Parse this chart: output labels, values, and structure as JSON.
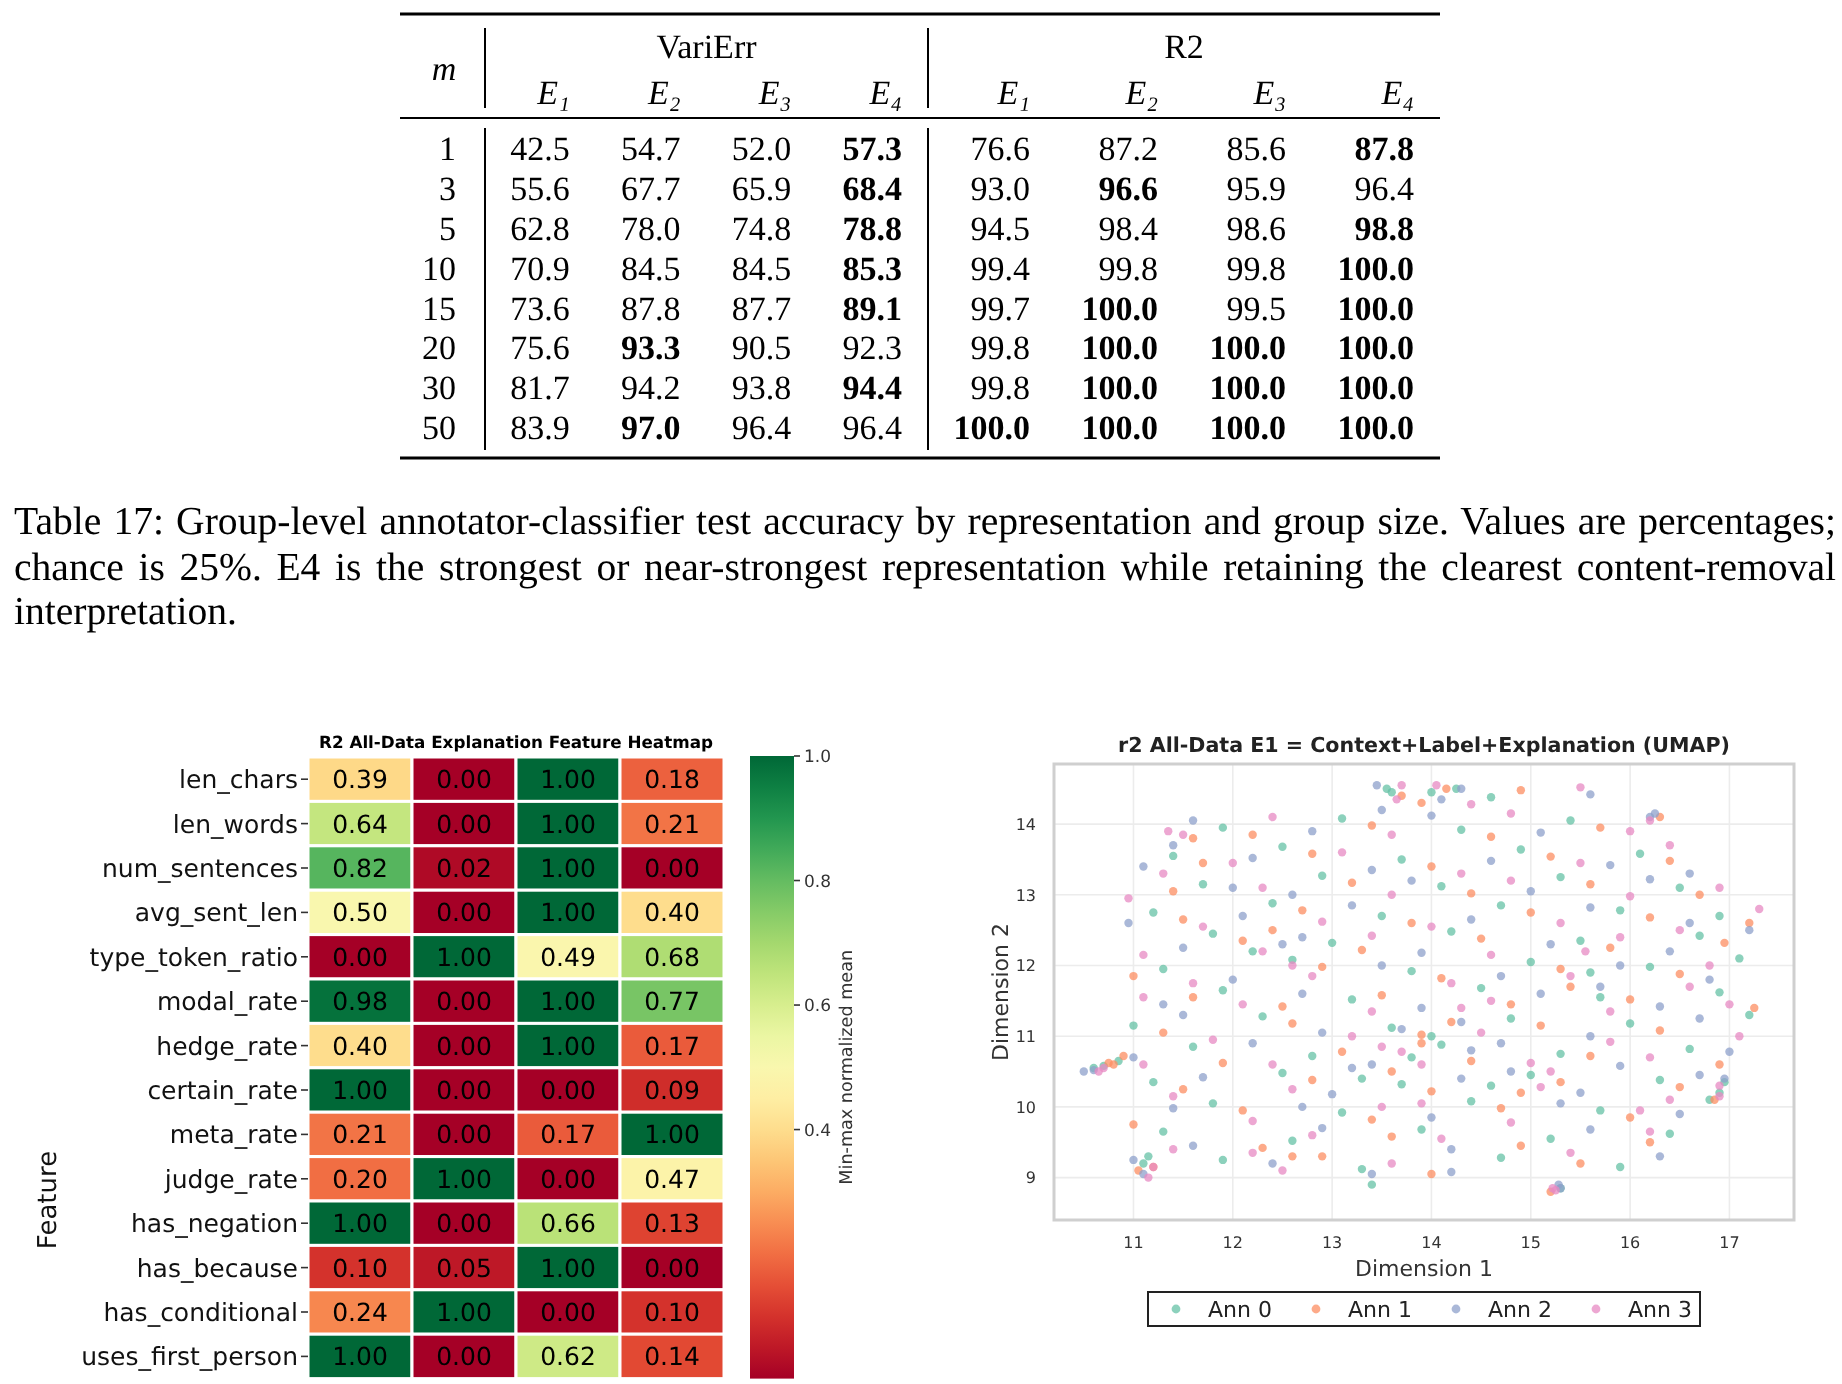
{
  "chart_data": [
    {
      "type": "other",
      "title": "VariErr",
      "ylabel": "m",
      "categories": [
        "E₁",
        "E₂",
        "E₃",
        "E₄"
      ],
      "series": [
        {
          "name": "1",
          "values": [
            42.5,
            54.7,
            52.0,
            57.3
          ],
          "value_labels": [
            "42.5",
            "54.7",
            "52.0",
            "57.3"
          ]
        },
        {
          "name": "3",
          "values": [
            55.6,
            67.7,
            65.9,
            68.4
          ],
          "value_labels": [
            "55.6",
            "67.7",
            "65.9",
            "68.4"
          ]
        },
        {
          "name": "5",
          "values": [
            62.8,
            78.0,
            74.8,
            78.8
          ],
          "value_labels": [
            "62.8",
            "78.0",
            "74.8",
            "78.8"
          ]
        },
        {
          "name": "10",
          "values": [
            70.9,
            84.5,
            84.5,
            85.3
          ],
          "value_labels": [
            "70.9",
            "84.5",
            "84.5",
            "85.3"
          ]
        },
        {
          "name": "15",
          "values": [
            73.6,
            87.8,
            87.7,
            89.1
          ],
          "value_labels": [
            "73.6",
            "87.8",
            "87.7",
            "89.1"
          ]
        },
        {
          "name": "20",
          "values": [
            75.6,
            93.3,
            90.5,
            92.3
          ],
          "value_labels": [
            "75.6",
            "93.3",
            "90.5",
            "92.3"
          ]
        },
        {
          "name": "30",
          "values": [
            81.7,
            94.2,
            93.8,
            94.4
          ],
          "value_labels": [
            "81.7",
            "94.2",
            "93.8",
            "94.4"
          ]
        },
        {
          "name": "50",
          "values": [
            83.9,
            97.0,
            96.4,
            96.4
          ],
          "value_labels": [
            "83.9",
            "97.0",
            "96.4",
            "96.4"
          ]
        }
      ],
      "annotations": [
        "Table 17: Group-level annotator-classifier test accuracy by representation and group size. Values are percentages; chance is 25%. E4 is the strongest or near-strongest representation while retaining the clearest content-removal interpretation."
      ]
    },
    {
      "type": "other",
      "title": "R2",
      "categories": [
        "E₁",
        "E₂",
        "E₃",
        "E₄"
      ],
      "series": [
        {
          "values": [
            76.6,
            87.2,
            85.6,
            87.8
          ],
          "value_labels": [
            "76.6",
            "87.2",
            "85.6",
            "87.8"
          ]
        },
        {
          "values": [
            93.0,
            96.6,
            95.9,
            96.4
          ],
          "value_labels": [
            "93.0",
            "96.6",
            "95.9",
            "96.4"
          ]
        },
        {
          "values": [
            94.5,
            98.4,
            98.6,
            98.8
          ],
          "value_labels": [
            "94.5",
            "98.4",
            "98.6",
            "98.8"
          ]
        },
        {
          "values": [
            99.4,
            99.8,
            99.8,
            100.0
          ],
          "value_labels": [
            "99.4",
            "99.8",
            "99.8",
            "100.0"
          ]
        },
        {
          "values": [
            99.7,
            100.0,
            99.5,
            100.0
          ],
          "value_labels": [
            "99.7",
            "100.0",
            "99.5",
            "100.0"
          ]
        },
        {
          "values": [
            99.8,
            100.0,
            100.0,
            100.0
          ],
          "value_labels": [
            "99.8",
            "100.0",
            "100.0",
            "100.0"
          ]
        },
        {
          "values": [
            99.8,
            100.0,
            100.0,
            100.0
          ],
          "value_labels": [
            "99.8",
            "100.0",
            "100.0",
            "100.0"
          ]
        },
        {
          "values": [
            100.0,
            100.0,
            100.0,
            100.0
          ],
          "value_labels": [
            "100.0",
            "100.0",
            "100.0",
            "100.0"
          ]
        }
      ]
    },
    {
      "type": "heatmap",
      "title": "R2 All-Data Explanation Feature Heatmap",
      "ylabel": "Feature",
      "clabel": "Min-max normalized mean",
      "tick_labels": "y",
      "categories": [
        null,
        null,
        null,
        null
      ],
      "y_categories": [
        "len_chars",
        "len_words",
        "num_sentences",
        "avg_sent_len",
        "type_token_ratio",
        "modal_rate",
        "hedge_rate",
        "certain_rate",
        "meta_rate",
        "judge_rate",
        "has_negation",
        "has_because",
        "has_conditional",
        "uses_first_person"
      ],
      "cells": [
        [
          0.39,
          0,
          1,
          0.18
        ],
        [
          0.64,
          0,
          1,
          0.21
        ],
        [
          0.82,
          0.02,
          1,
          0
        ],
        [
          0.5,
          0,
          1,
          0.4
        ],
        [
          0,
          1,
          0.49,
          0.68
        ],
        [
          0.98,
          0,
          1,
          0.77
        ],
        [
          0.4,
          0,
          1,
          0.17
        ],
        [
          1,
          0,
          0,
          0.09
        ],
        [
          0.21,
          0,
          0.17,
          1
        ],
        [
          0.2,
          1,
          0,
          0.47
        ],
        [
          1,
          0,
          0.66,
          0.13
        ],
        [
          0.1,
          0.05,
          1,
          0
        ],
        [
          0.24,
          1,
          0,
          0.1
        ],
        [
          1,
          0,
          0.62,
          0.14
        ]
      ],
      "cell_labels": [
        [
          "0.39",
          "0.00",
          "1.00",
          "0.18"
        ],
        [
          "0.64",
          "0.00",
          "1.00",
          "0.21"
        ],
        [
          "0.82",
          "0.02",
          "1.00",
          "0.00"
        ],
        [
          "0.50",
          "0.00",
          "1.00",
          "0.40"
        ],
        [
          "0.00",
          "1.00",
          "0.49",
          "0.68"
        ],
        [
          "0.98",
          "0.00",
          "1.00",
          "0.77"
        ],
        [
          "0.40",
          "0.00",
          "1.00",
          "0.17"
        ],
        [
          "1.00",
          "0.00",
          "0.00",
          "0.09"
        ],
        [
          "0.21",
          "0.00",
          "0.17",
          "1.00"
        ],
        [
          "0.20",
          "1.00",
          "0.00",
          "0.47"
        ],
        [
          "1.00",
          "0.00",
          "0.66",
          "0.13"
        ],
        [
          "0.10",
          "0.05",
          "1.00",
          "0.00"
        ],
        [
          "0.24",
          "1.00",
          "0.00",
          "0.10"
        ],
        [
          "1.00",
          "0.00",
          "0.62",
          "0.14"
        ]
      ],
      "clim": [
        0,
        1
      ],
      "cticks": [
        0.4,
        0.6,
        0.8,
        {
          "value": 1,
          "label": "1.0"
        }
      ]
    },
    {
      "type": "scatter",
      "title": "r2 All-Data E1 = Context+Label+Explanation (UMAP)",
      "xlabel": "Dimension 1",
      "ylabel": "Dimension 2",
      "xlim": [
        10.2,
        17.65
      ],
      "ylim": [
        8.4,
        14.85
      ],
      "xticks": [
        11,
        12,
        13,
        14,
        15,
        16,
        17
      ],
      "yticks": [
        9,
        10,
        11,
        12,
        13,
        14
      ],
      "grid": true,
      "legend": "bottom",
      "marker": "circle",
      "series": [
        {
          "name": "Ann 0",
          "color": "#66c2a5",
          "x": [
            13.6,
            14.6,
            11.9,
            13.1,
            14.3,
            15.4,
            11.4,
            12.5,
            13.7,
            14.9,
            16.1,
            11.7,
            12.9,
            14.1,
            15.3,
            16.5,
            11.2,
            12.4,
            13.5,
            14.7,
            15.9,
            16.9,
            11.8,
            13.0,
            14.2,
            15.5,
            16.7,
            11.3,
            12.6,
            13.8,
            15.0,
            16.2,
            17.1,
            11.9,
            13.2,
            14.5,
            15.7,
            16.9,
            11.0,
            12.3,
            13.6,
            14.8,
            16.0,
            17.2,
            11.6,
            12.8,
            14.1,
            15.3,
            16.6,
            11.2,
            12.5,
            13.7,
            15.0,
            16.3,
            11.8,
            13.1,
            14.4,
            15.7,
            16.8,
            11.3,
            12.6,
            13.9,
            15.2,
            16.4,
            11.9,
            13.3,
            14.7,
            15.9,
            13.4,
            10.6,
            10.7,
            10.85,
            11.1,
            11.15,
            13.55,
            14.0,
            14.25,
            15.3,
            16.9,
            16.95,
            13.8,
            14.0,
            13.3,
            14.6,
            12.2,
            15.6
          ],
          "values": [
            14.45,
            14.38,
            13.95,
            14.08,
            13.92,
            14.05,
            13.55,
            13.68,
            13.5,
            13.64,
            13.58,
            13.15,
            13.27,
            13.12,
            13.25,
            13.1,
            12.75,
            12.88,
            12.7,
            12.85,
            12.78,
            12.7,
            12.45,
            12.32,
            12.48,
            12.35,
            12.42,
            11.95,
            12.08,
            11.92,
            12.05,
            11.98,
            12.1,
            11.65,
            11.52,
            11.68,
            11.55,
            11.62,
            11.15,
            11.28,
            11.12,
            11.25,
            11.18,
            11.3,
            10.85,
            10.72,
            10.88,
            10.75,
            10.82,
            10.35,
            10.48,
            10.32,
            10.45,
            10.38,
            10.05,
            9.92,
            10.08,
            9.95,
            10.1,
            9.65,
            9.52,
            9.68,
            9.55,
            9.62,
            9.25,
            9.12,
            9.28,
            9.15,
            8.9,
            10.55,
            10.58,
            10.65,
            9.2,
            9.3,
            14.5,
            14.45,
            14.5,
            8.85,
            10.2,
            10.35,
            10.7,
            11.0,
            10.4,
            10.3,
            12.2,
            11.9
          ]
        },
        {
          "name": "Ann 1",
          "color": "#fc8d62",
          "x": [
            13.9,
            14.9,
            12.2,
            13.4,
            14.6,
            15.7,
            11.7,
            12.8,
            14.0,
            15.2,
            16.4,
            11.4,
            13.2,
            14.4,
            15.6,
            16.7,
            11.5,
            12.7,
            13.8,
            15.0,
            16.2,
            17.2,
            12.1,
            13.3,
            14.5,
            15.8,
            16.95,
            11.0,
            12.9,
            14.1,
            15.3,
            16.5,
            11.6,
            12.5,
            13.5,
            14.8,
            16.0,
            17.25,
            11.3,
            12.6,
            13.9,
            15.1,
            16.3,
            10.9,
            11.9,
            13.1,
            14.4,
            15.6,
            16.9,
            11.5,
            12.8,
            14.0,
            15.3,
            16.5,
            12.1,
            13.4,
            14.7,
            16.0,
            11.0,
            12.3,
            13.6,
            14.9,
            16.2,
            11.2,
            12.6,
            14.0,
            15.5,
            10.75,
            10.8,
            11.05,
            13.7,
            14.15,
            15.2,
            16.85,
            13.9,
            14.2,
            13.6,
            14.9,
            12.4,
            15.4,
            11.6,
            16.3,
            12.9
          ],
          "values": [
            14.3,
            14.48,
            13.85,
            13.98,
            13.82,
            13.95,
            13.45,
            13.58,
            13.4,
            13.54,
            13.48,
            13.05,
            13.17,
            13.02,
            13.15,
            13.0,
            12.65,
            12.78,
            12.6,
            12.75,
            12.68,
            12.6,
            12.35,
            12.22,
            12.38,
            12.25,
            12.32,
            11.85,
            11.98,
            11.82,
            11.95,
            11.88,
            11.55,
            11.42,
            11.58,
            11.45,
            11.52,
            11.4,
            11.05,
            11.18,
            11.02,
            11.15,
            11.08,
            10.72,
            10.62,
            10.78,
            10.65,
            10.72,
            10.6,
            10.25,
            10.38,
            10.22,
            10.35,
            10.28,
            9.95,
            9.82,
            9.98,
            9.85,
            9.75,
            9.42,
            9.58,
            9.45,
            9.5,
            9.15,
            9.3,
            9.05,
            9.2,
            10.62,
            10.6,
            9.1,
            14.4,
            14.5,
            8.8,
            10.1,
            10.9,
            11.2,
            10.5,
            10.2,
            12.5,
            11.7,
            13.8,
            14.1,
            9.3
          ]
        },
        {
          "name": "Ann 2",
          "color": "#8da0cb",
          "x": [
            13.5,
            14.3,
            15.6,
            11.6,
            12.8,
            14.0,
            15.1,
            16.2,
            11.1,
            12.2,
            13.4,
            14.6,
            15.8,
            16.6,
            12.0,
            12.6,
            13.8,
            15.0,
            16.2,
            10.95,
            12.1,
            13.2,
            14.4,
            15.6,
            16.6,
            11.5,
            12.7,
            13.9,
            15.2,
            16.4,
            17.2,
            12.0,
            13.5,
            14.7,
            15.9,
            16.8,
            11.3,
            12.7,
            13.9,
            15.1,
            16.3,
            11.5,
            12.9,
            14.3,
            15.6,
            16.7,
            11.0,
            12.2,
            13.4,
            14.7,
            15.9,
            17.0,
            11.7,
            13.0,
            14.3,
            15.5,
            16.7,
            11.4,
            12.7,
            14.0,
            15.3,
            16.5,
            11.6,
            12.9,
            14.2,
            15.6,
            16.3,
            11.1,
            12.4,
            14.2,
            15.3,
            10.5,
            10.6,
            11.0,
            13.45,
            14.1,
            15.28,
            16.95,
            13.7,
            14.4,
            13.2,
            14.8,
            12.5,
            15.7,
            11.4,
            16.25,
            13.4
          ],
          "values": [
            14.2,
            14.5,
            14.42,
            14.05,
            13.9,
            14.12,
            13.88,
            14.1,
            13.4,
            13.52,
            13.35,
            13.48,
            13.42,
            13.3,
            13.1,
            13.0,
            13.2,
            13.05,
            13.22,
            12.6,
            12.7,
            12.85,
            12.65,
            12.82,
            12.6,
            12.25,
            12.4,
            12.18,
            12.3,
            12.2,
            12.5,
            11.8,
            12.0,
            11.85,
            12.0,
            11.8,
            11.45,
            11.6,
            11.4,
            11.6,
            11.42,
            11.3,
            11.05,
            11.2,
            11.0,
            11.25,
            10.7,
            10.9,
            10.6,
            10.9,
            10.58,
            10.78,
            10.42,
            10.18,
            10.4,
            10.2,
            10.45,
            9.98,
            10.0,
            9.85,
            10.05,
            9.9,
            9.45,
            9.7,
            9.4,
            9.68,
            9.3,
            9.05,
            9.2,
            9.08,
            8.85,
            10.5,
            10.52,
            9.25,
            14.55,
            14.35,
            8.9,
            10.4,
            11.1,
            10.8,
            10.55,
            10.5,
            12.3,
            11.7,
            13.7,
            14.15,
            9.05
          ]
        },
        {
          "name": "Ann 3",
          "color": "#e78ac3",
          "x": [
            13.7,
            14.4,
            15.5,
            11.5,
            12.4,
            13.6,
            14.8,
            16.0,
            11.3,
            12.0,
            13.1,
            14.3,
            15.5,
            16.4,
            10.95,
            12.3,
            13.6,
            14.8,
            16.0,
            16.9,
            11.7,
            12.9,
            14.0,
            15.3,
            16.5,
            17.3,
            11.1,
            12.3,
            13.4,
            14.6,
            15.9,
            16.8,
            11.6,
            12.8,
            14.2,
            15.4,
            16.6,
            11.1,
            12.1,
            13.4,
            14.6,
            15.8,
            17.0,
            11.8,
            13.2,
            14.5,
            15.8,
            17.1,
            11.1,
            12.4,
            13.7,
            15.0,
            16.2,
            11.4,
            12.6,
            13.9,
            15.1,
            16.4,
            12.2,
            13.5,
            14.8,
            16.1,
            16.9,
            11.4,
            12.8,
            14.1,
            15.4,
            16.2,
            11.15,
            12.2,
            13.6,
            15.25,
            10.65,
            10.7,
            11.2,
            13.65,
            14.05,
            15.22,
            16.9,
            13.9,
            14.3,
            13.5,
            15.2,
            12.6,
            15.55,
            11.35,
            16.2,
            12.5
          ],
          "values": [
            14.55,
            14.28,
            14.52,
            13.85,
            14.1,
            13.85,
            14.15,
            13.9,
            13.3,
            13.45,
            13.6,
            13.3,
            13.45,
            13.7,
            12.95,
            13.1,
            13.0,
            13.2,
            12.98,
            13.1,
            12.55,
            12.62,
            12.55,
            12.6,
            12.5,
            12.8,
            12.15,
            12.2,
            12.42,
            12.15,
            12.4,
            12.0,
            11.75,
            11.85,
            11.75,
            11.85,
            11.7,
            11.55,
            11.45,
            11.35,
            11.5,
            11.35,
            11.45,
            10.95,
            11.0,
            11.05,
            10.92,
            11.0,
            10.6,
            10.6,
            10.78,
            10.62,
            10.7,
            10.15,
            10.25,
            10.05,
            10.28,
            10.1,
            9.8,
            10.0,
            9.78,
            9.95,
            10.3,
            9.4,
            9.6,
            9.55,
            9.35,
            9.65,
            9.0,
            9.35,
            9.2,
            8.82,
            10.5,
            10.55,
            9.15,
            14.35,
            14.55,
            8.85,
            10.15,
            10.6,
            11.4,
            10.85,
            10.5,
            12.0,
            12.2,
            13.9,
            14.05,
            9.1
          ]
        }
      ]
    }
  ]
}
